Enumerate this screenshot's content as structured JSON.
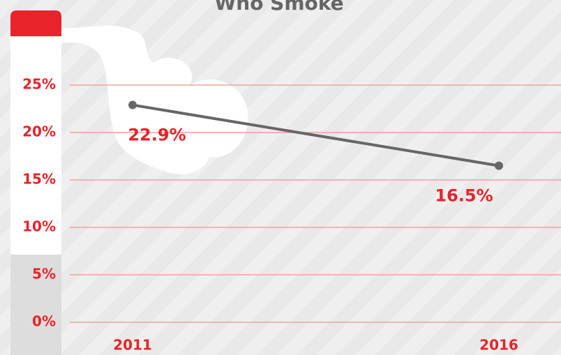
{
  "chart_data": {
    "type": "line",
    "title": "Who Smoke",
    "x": [
      2011,
      2016
    ],
    "xlim": [
      2011,
      2016
    ],
    "xticks": [
      2011,
      2016
    ],
    "series": [
      {
        "color": "#666666",
        "values": [
          22.9,
          16.5
        ],
        "value_labels": [
          "22.9%",
          "16.5%"
        ],
        "label_color": "#e8232a"
      }
    ],
    "ylim": [
      0,
      25
    ],
    "yticks": [
      {
        "value": 0,
        "label": "0%"
      },
      {
        "value": 5,
        "label": "5%"
      },
      {
        "value": 10,
        "label": "10%"
      },
      {
        "value": 15,
        "label": "15%"
      },
      {
        "value": 20,
        "label": "20%"
      },
      {
        "value": 25,
        "label": "25%"
      }
    ],
    "grid": true,
    "grid_color": "#f2a0a0"
  }
}
